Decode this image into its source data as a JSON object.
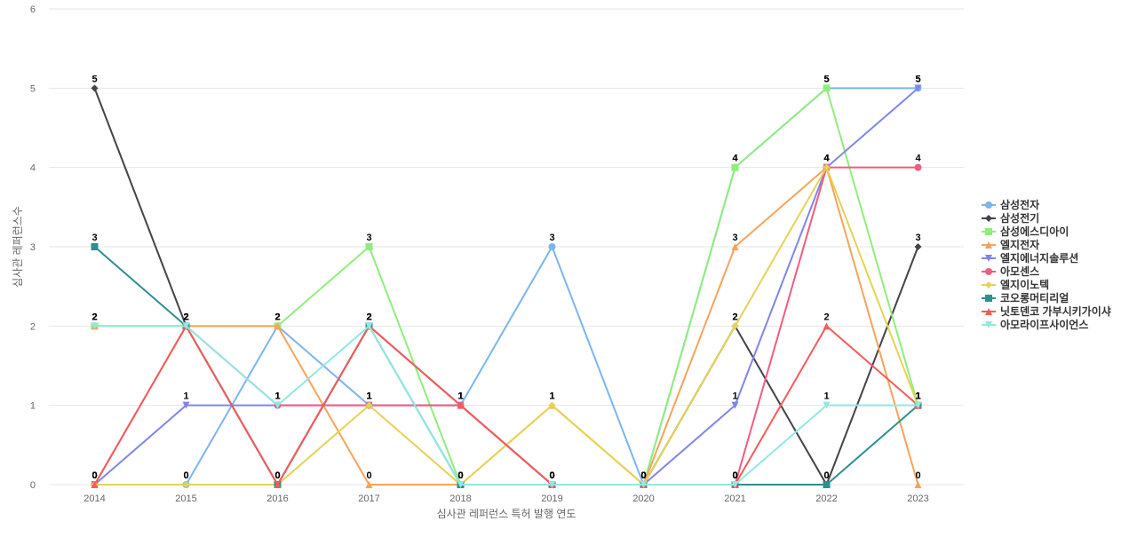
{
  "chart_data": {
    "type": "line",
    "x_label": "심사관 레퍼런스 특허 발행 연도",
    "y_label": "심사관 레퍼런스수",
    "categories": [
      "2014",
      "2015",
      "2016",
      "2017",
      "2018",
      "2019",
      "2020",
      "2021",
      "2022",
      "2023"
    ],
    "ylim": [
      0,
      6
    ],
    "yticks": [
      0,
      1,
      2,
      3,
      4,
      5,
      6
    ],
    "grid": true,
    "series": [
      {
        "name": "삼성전자",
        "color": "#7cb5ec",
        "values": [
          0,
          0,
          2,
          1,
          1,
          3,
          0,
          4,
          5,
          5
        ]
      },
      {
        "name": "삼성전기",
        "color": "#434348",
        "values": [
          5,
          2,
          0,
          2,
          1,
          0,
          0,
          2,
          0,
          3
        ]
      },
      {
        "name": "삼성에스디아이",
        "color": "#90ed7d",
        "values": [
          2,
          2,
          2,
          3,
          0,
          0,
          0,
          4,
          5,
          1
        ]
      },
      {
        "name": "엘지전자",
        "color": "#f7a35c",
        "values": [
          2,
          2,
          2,
          0,
          0,
          1,
          0,
          3,
          4,
          0
        ]
      },
      {
        "name": "엘지에너지솔루션",
        "color": "#8085e9",
        "values": [
          0,
          1,
          1,
          1,
          1,
          0,
          0,
          1,
          4,
          5
        ]
      },
      {
        "name": "아모센스",
        "color": "#f15c80",
        "values": [
          0,
          2,
          1,
          1,
          1,
          0,
          0,
          0,
          4,
          4
        ]
      },
      {
        "name": "엘지이노텍",
        "color": "#e4d354",
        "values": [
          0,
          0,
          0,
          1,
          0,
          1,
          0,
          2,
          4,
          1
        ]
      },
      {
        "name": "코오롱머티리얼",
        "color": "#2b908f",
        "values": [
          3,
          2,
          0,
          2,
          0,
          0,
          0,
          0,
          0,
          1
        ]
      },
      {
        "name": "닛토덴코 가부시키가이샤",
        "color": "#f45b5b",
        "values": [
          0,
          2,
          0,
          2,
          1,
          0,
          0,
          0,
          2,
          1
        ]
      },
      {
        "name": "아모라이프사이언스",
        "color": "#91e8e1",
        "values": [
          2,
          2,
          1,
          2,
          0,
          0,
          0,
          0,
          1,
          1
        ]
      }
    ]
  }
}
